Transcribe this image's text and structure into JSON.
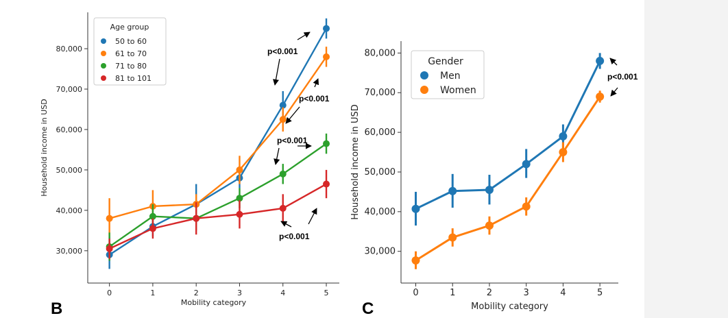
{
  "colors": {
    "blue": "#1f77b4",
    "orange": "#ff7f0e",
    "green": "#2ca02c",
    "red": "#d62728"
  },
  "chart_data": [
    {
      "type": "line",
      "panel_label": "B",
      "xlabel": "Mobility category",
      "ylabel": "Household income in USD",
      "x": [
        0,
        1,
        2,
        3,
        4,
        5
      ],
      "xlim": [
        -0.5,
        5.3
      ],
      "ylim": [
        22000,
        89000
      ],
      "yticks": [
        30000,
        40000,
        50000,
        60000,
        70000,
        80000
      ],
      "ytick_labels": [
        "30,000",
        "40,000",
        "50,000",
        "60,000",
        "70,000",
        "80,000"
      ],
      "legend_title": "Age group",
      "legend_position": "top-left",
      "series": [
        {
          "name": "50 to 60",
          "color": "#1f77b4",
          "values": [
            29000,
            36000,
            41500,
            48000,
            66000,
            85000
          ],
          "errors": [
            [
              25500,
              33500
            ],
            [
              33500,
              38500
            ],
            [
              36500,
              46500
            ],
            [
              45500,
              50500
            ],
            [
              62500,
              69500
            ],
            [
              82500,
              87500
            ]
          ]
        },
        {
          "name": "61 to 70",
          "color": "#ff7f0e",
          "values": [
            38000,
            41000,
            41500,
            50000,
            62500,
            78000
          ],
          "errors": [
            [
              33500,
              43000
            ],
            [
              37500,
              45000
            ],
            [
              39000,
              44000
            ],
            [
              46500,
              53500
            ],
            [
              59500,
              65500
            ],
            [
              75500,
              80500
            ]
          ]
        },
        {
          "name": "71 to 80",
          "color": "#2ca02c",
          "values": [
            31000,
            38500,
            38000,
            43000,
            49000,
            56500
          ],
          "errors": [
            [
              27500,
              34500
            ],
            [
              35500,
              41500
            ],
            [
              35000,
              41000
            ],
            [
              40500,
              45500
            ],
            [
              46500,
              51500
            ],
            [
              54000,
              59000
            ]
          ]
        },
        {
          "name": "81 to 101",
          "color": "#d62728",
          "values": [
            30500,
            35500,
            38000,
            39000,
            40500,
            46500
          ],
          "errors": [
            [
              28000,
              33000
            ],
            [
              33000,
              38000
            ],
            [
              34000,
              42000
            ],
            [
              35500,
              42500
            ],
            [
              37000,
              44000
            ],
            [
              43000,
              50000
            ]
          ]
        }
      ],
      "annotations": [
        "p<0.001",
        "p<0.001",
        "p<0.001",
        "p<0.001"
      ]
    },
    {
      "type": "line",
      "panel_label": "C",
      "xlabel": "Mobility category",
      "ylabel": "Household income in USD",
      "x": [
        0,
        1,
        2,
        3,
        4,
        5
      ],
      "xlim": [
        -0.4,
        5.5
      ],
      "ylim": [
        22000,
        83000
      ],
      "yticks": [
        30000,
        40000,
        50000,
        60000,
        70000,
        80000
      ],
      "ytick_labels": [
        "30,000",
        "40,000",
        "50,000",
        "60,000",
        "70,000",
        "80,000"
      ],
      "legend_title": "Gender",
      "legend_position": "top-left",
      "series": [
        {
          "name": "Men",
          "color": "#1f77b4",
          "values": [
            40700,
            45200,
            45500,
            52000,
            59000,
            78000
          ],
          "errors": [
            [
              36500,
              45000
            ],
            [
              41000,
              49500
            ],
            [
              41800,
              49300
            ],
            [
              48500,
              55800
            ],
            [
              56000,
              62000
            ],
            [
              76000,
              80000
            ]
          ]
        },
        {
          "name": "Women",
          "color": "#ff7f0e",
          "values": [
            27700,
            33500,
            36500,
            41300,
            55000,
            69000
          ],
          "errors": [
            [
              25500,
              30000
            ],
            [
              31200,
              35800
            ],
            [
              34200,
              38800
            ],
            [
              39000,
              43600
            ],
            [
              52500,
              57500
            ],
            [
              67500,
              70500
            ]
          ]
        }
      ],
      "annotations": [
        "p<0.001"
      ]
    }
  ]
}
